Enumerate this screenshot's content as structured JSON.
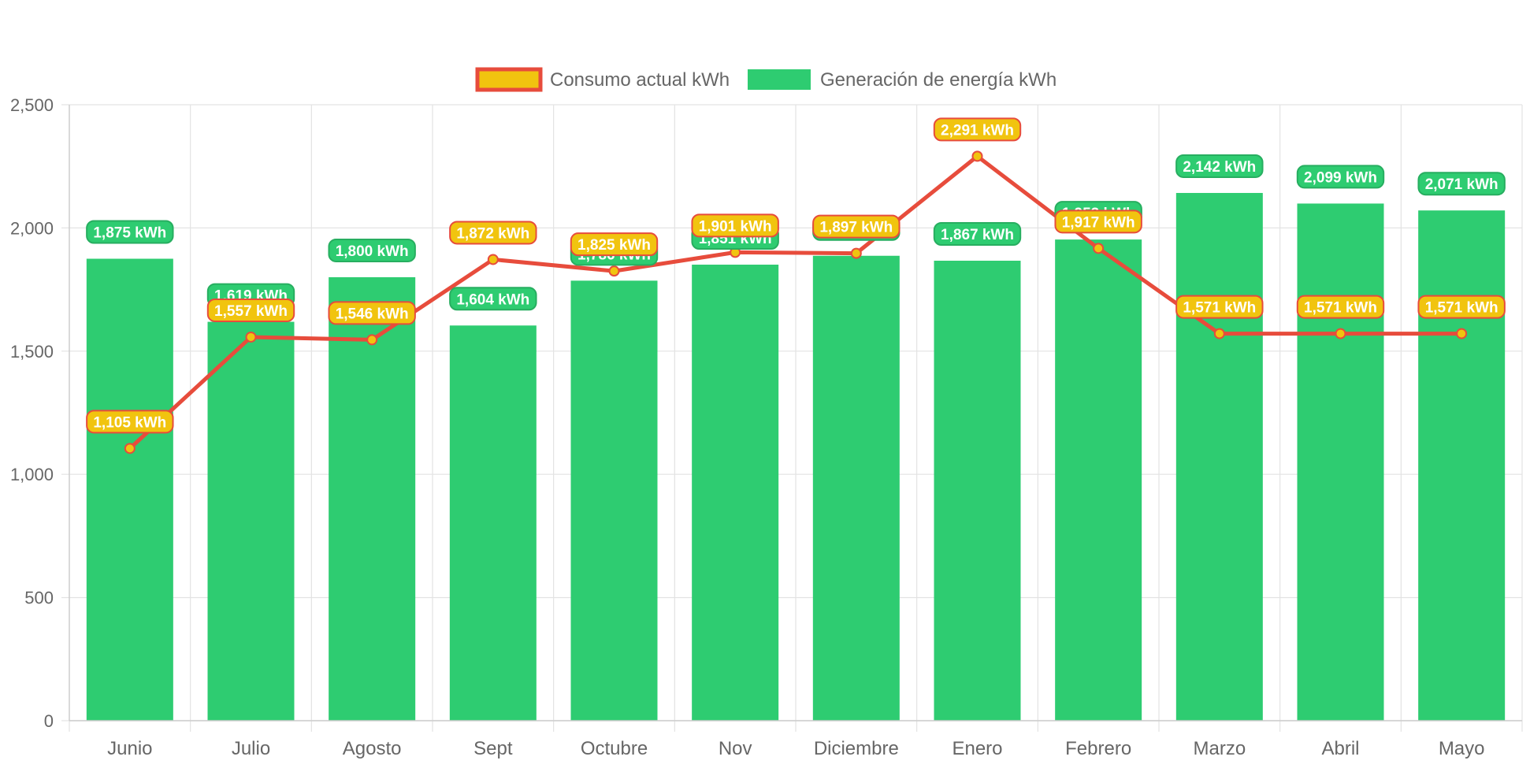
{
  "chart_data": {
    "type": "bar",
    "categories": [
      "Junio",
      "Julio",
      "Agosto",
      "Sept",
      "Octubre",
      "Nov",
      "Diciembre",
      "Enero",
      "Febrero",
      "Marzo",
      "Abril",
      "Mayo"
    ],
    "ylim": [
      0,
      2500
    ],
    "yticks": [
      0,
      500,
      1000,
      1500,
      2000,
      2500
    ],
    "ytick_labels": [
      "0",
      "500",
      "1,000",
      "1,500",
      "2,000",
      "2,500"
    ],
    "grid": true,
    "legend_position": "top-center",
    "series": [
      {
        "name": "Consumo actual kWh",
        "type": "line",
        "values": [
          1105,
          1557,
          1546,
          1872,
          1825,
          1901,
          1897,
          2291,
          1917,
          1571,
          1571,
          1571
        ],
        "labels": [
          "1,105 kWh",
          "1,557 kWh",
          "1,546 kWh",
          "1,872 kWh",
          "1,825 kWh",
          "1,901 kWh",
          "1,897 kWh",
          "2,291 kWh",
          "1,917 kWh",
          "1,571 kWh",
          "1,571 kWh",
          "1,571 kWh"
        ],
        "line_color": "#e74c3c",
        "fill_color": "#f1c40f"
      },
      {
        "name": "Generación de energía kWh",
        "type": "bar",
        "values": [
          1875,
          1619,
          1800,
          1604,
          1786,
          1851,
          1887,
          1867,
          1953,
          2142,
          2099,
          2071
        ],
        "labels": [
          "1,875 kWh",
          "1,619 kWh",
          "1,800 kWh",
          "1,604 kWh",
          "1,786 kWh",
          "1,851 kWh",
          "1,887 kWh",
          "1,867 kWh",
          "1,953 kWh",
          "2,142 kWh",
          "2,099 kWh",
          "2,071 kWh"
        ],
        "fill_color": "#2ecc71"
      }
    ]
  }
}
